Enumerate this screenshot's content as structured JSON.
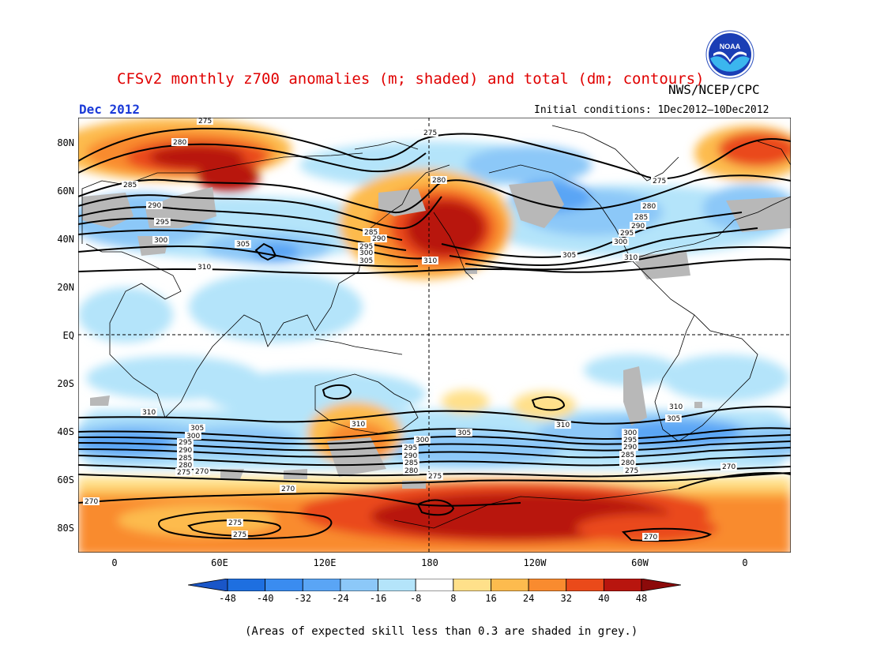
{
  "title": "CFSv2 monthly z700 anomalies (m; shaded) and total (dm; contours)",
  "credit": "NWS/NCEP/CPC",
  "logo_text": "NOAA",
  "month": "Dec 2012",
  "initial_conditions": "Initial conditions: 1Dec2012—10Dec2012",
  "lat_labels": [
    "80N",
    "60N",
    "40N",
    "20N",
    "EQ",
    "20S",
    "40S",
    "60S",
    "80S"
  ],
  "lon_labels": [
    "0",
    "60E",
    "120E",
    "180",
    "120W",
    "60W",
    "0"
  ],
  "colorbar": {
    "ticks": [
      "-48",
      "-40",
      "-32",
      "-24",
      "-16",
      "-8",
      "8",
      "16",
      "24",
      "32",
      "40",
      "48"
    ],
    "colors": [
      "#1e6fe0",
      "#3a8cf0",
      "#5aa5f5",
      "#8cc8f8",
      "#b4e4fa",
      "#ffffff",
      "#ffe08a",
      "#fdbb4e",
      "#f98b2f",
      "#ea4a1a",
      "#b8150e"
    ]
  },
  "contour_labels": [
    "275",
    "280",
    "285",
    "290",
    "295",
    "300",
    "305",
    "310",
    "270"
  ],
  "note": "(Areas of expected skill less than 0.3 are shaded in grey.)"
}
